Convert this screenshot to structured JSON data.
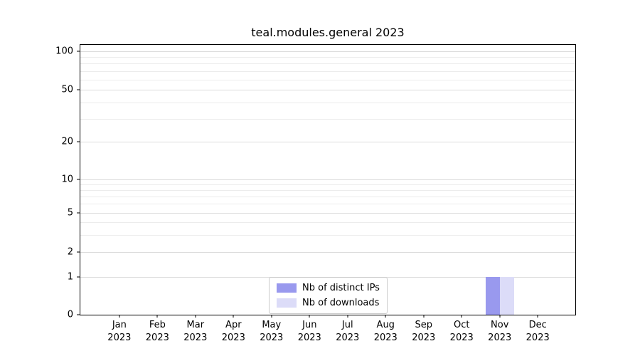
{
  "chart_data": {
    "type": "bar",
    "title": "teal.modules.general 2023",
    "categories": [
      "Jan 2023",
      "Feb 2023",
      "Mar 2023",
      "Apr 2023",
      "May 2023",
      "Jun 2023",
      "Jul 2023",
      "Aug 2023",
      "Sep 2023",
      "Oct 2023",
      "Nov 2023",
      "Dec 2023"
    ],
    "x_months": [
      "Jan",
      "Feb",
      "Mar",
      "Apr",
      "May",
      "Jun",
      "Jul",
      "Aug",
      "Sep",
      "Oct",
      "Nov",
      "Dec"
    ],
    "x_year": "2023",
    "series": [
      {
        "name": "Nb of distinct IPs",
        "color": "#9999ee",
        "values": [
          0,
          0,
          0,
          0,
          0,
          0,
          0,
          0,
          0,
          0,
          1,
          0
        ]
      },
      {
        "name": "Nb of downloads",
        "color": "#dcdcf8",
        "values": [
          0,
          0,
          0,
          0,
          0,
          0,
          0,
          0,
          0,
          0,
          1,
          0
        ]
      }
    ],
    "yscale": "symlog",
    "ylim": [
      0,
      100
    ],
    "y_major_ticks": [
      0,
      1,
      2,
      5,
      10,
      20,
      50,
      100
    ],
    "y_minor_gridlines": [
      3,
      4,
      6,
      7,
      8,
      9,
      30,
      40,
      60,
      70,
      80,
      90
    ],
    "grid": "horizontal",
    "legend": {
      "position": "bottom-center",
      "entries": [
        "Nb of distinct IPs",
        "Nb of downloads"
      ]
    }
  }
}
